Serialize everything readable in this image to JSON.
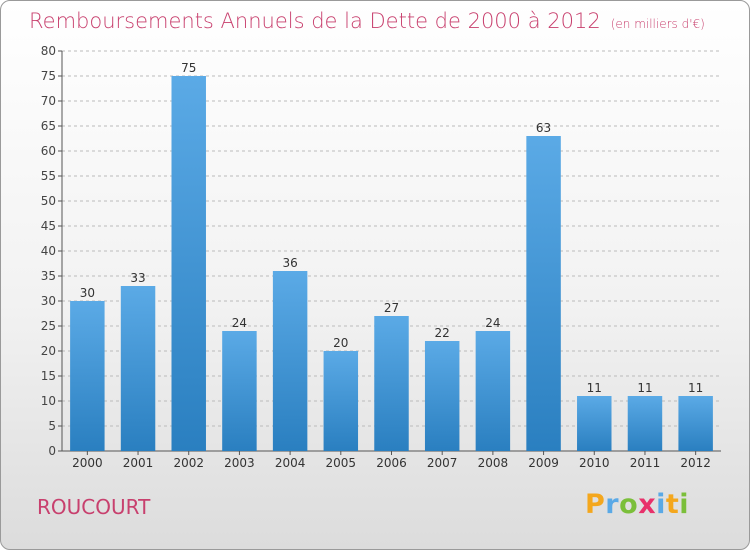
{
  "header": {
    "title": "Remboursements Annuels de la Dette de 2000 à 2012",
    "subtitle": "(en milliers d'€)"
  },
  "footer": {
    "town": "ROUCOURT",
    "logo": [
      "P",
      "r",
      "o",
      "x",
      "i",
      "t",
      "i"
    ],
    "logo_colors": [
      "#f4a71d",
      "#5aa9e6",
      "#7bbf3a",
      "#e8316b",
      "#5aa9e6",
      "#f4a71d",
      "#7bbf3a"
    ]
  },
  "colors": {
    "bar_light": "#5baae6",
    "bar_dark": "#2a7fc0",
    "axis": "#555555",
    "grid": "#bbbbbb",
    "title": "#c8406e"
  },
  "chart_data": {
    "type": "bar",
    "title": "Remboursements Annuels de la Dette de 2000 à 2012",
    "xlabel": "",
    "ylabel": "",
    "categories": [
      "2000",
      "2001",
      "2002",
      "2003",
      "2004",
      "2005",
      "2006",
      "2007",
      "2008",
      "2009",
      "2010",
      "2011",
      "2012"
    ],
    "values": [
      30,
      33,
      75,
      24,
      36,
      20,
      27,
      22,
      24,
      63,
      11,
      11,
      11
    ],
    "ylim": [
      0,
      80
    ],
    "yticks": [
      0,
      5,
      10,
      15,
      20,
      25,
      30,
      35,
      40,
      45,
      50,
      55,
      60,
      65,
      70,
      75,
      80
    ],
    "grid": "horizontal dashed",
    "legend": "none"
  }
}
